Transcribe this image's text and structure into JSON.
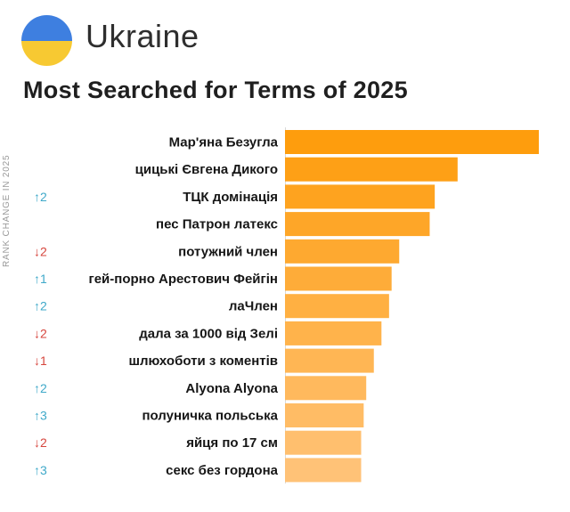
{
  "header": {
    "country": "Ukraine",
    "title": "Most Searched for Terms of 2025",
    "flag_colors": {
      "top": "#3e7fe0",
      "bottom": "#f7c932"
    }
  },
  "rank_axis_label": "RANK CHANGE IN 2025",
  "colors": {
    "up": "#3fa9c9",
    "down": "#d6453d",
    "bar_start": "#fe9d0d",
    "bar_end": "#ffc277"
  },
  "chart_data": {
    "type": "bar",
    "orientation": "horizontal",
    "title": "Most Searched for Terms of 2025",
    "categories": [
      "Мар'яна Безугла",
      "цицькі Євгена Дикого",
      "ТЦК домінація",
      "пес Патрон латекс",
      "потужний член",
      "гей-порно Арестович Фейгін",
      "лаЧлен",
      "дала за 1000 від Зелі",
      "шлюхоботи з коментів",
      "Alyona Alyona",
      "полуничка польська",
      "яйця по 17 см",
      "секс без гордона"
    ],
    "values": [
      100,
      68,
      59,
      57,
      45,
      42,
      41,
      38,
      35,
      32,
      31,
      30,
      30
    ],
    "rank_change": [
      "",
      "",
      "↑2",
      "",
      "↓2",
      "↑1",
      "↑2",
      "↓2",
      "↓1",
      "↑2",
      "↑3",
      "↓2",
      "↑3"
    ],
    "xlim": [
      0,
      100
    ],
    "grid": false,
    "legend": "none"
  }
}
